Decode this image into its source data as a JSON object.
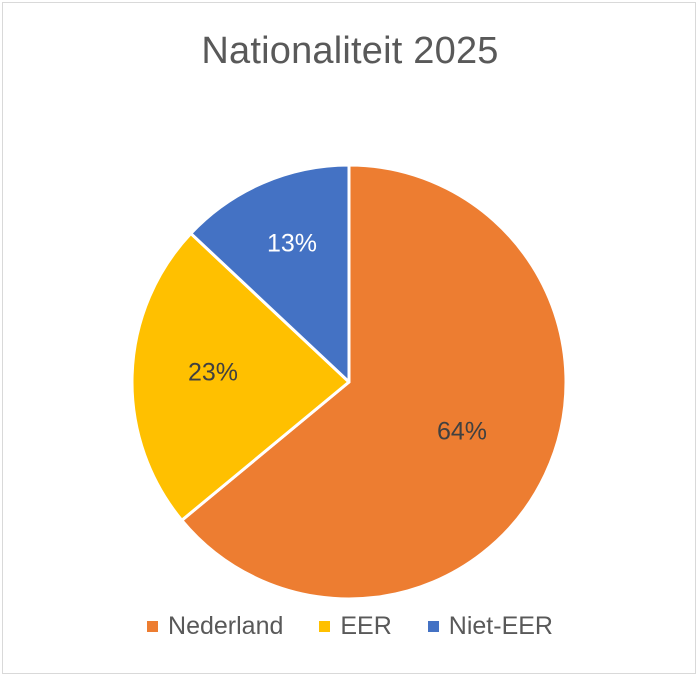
{
  "chart_data": {
    "type": "pie",
    "title": "Nationaliteit 2025",
    "categories": [
      "Nederland",
      "EER",
      "Niet-EER"
    ],
    "values": [
      64,
      23,
      13
    ],
    "labels": [
      "64%",
      "23%",
      "13%"
    ],
    "colors": [
      "#ED7D31",
      "#FFC000",
      "#4472C4"
    ],
    "label_colors": [
      "#404040",
      "#404040",
      "#ffffff"
    ],
    "legend_position": "bottom",
    "start_angle_deg": 0,
    "direction": "clockwise"
  },
  "legend": [
    {
      "label": "Nederland",
      "color": "#ED7D31"
    },
    {
      "label": "EER",
      "color": "#FFC000"
    },
    {
      "label": "Niet-EER",
      "color": "#4472C4"
    }
  ]
}
